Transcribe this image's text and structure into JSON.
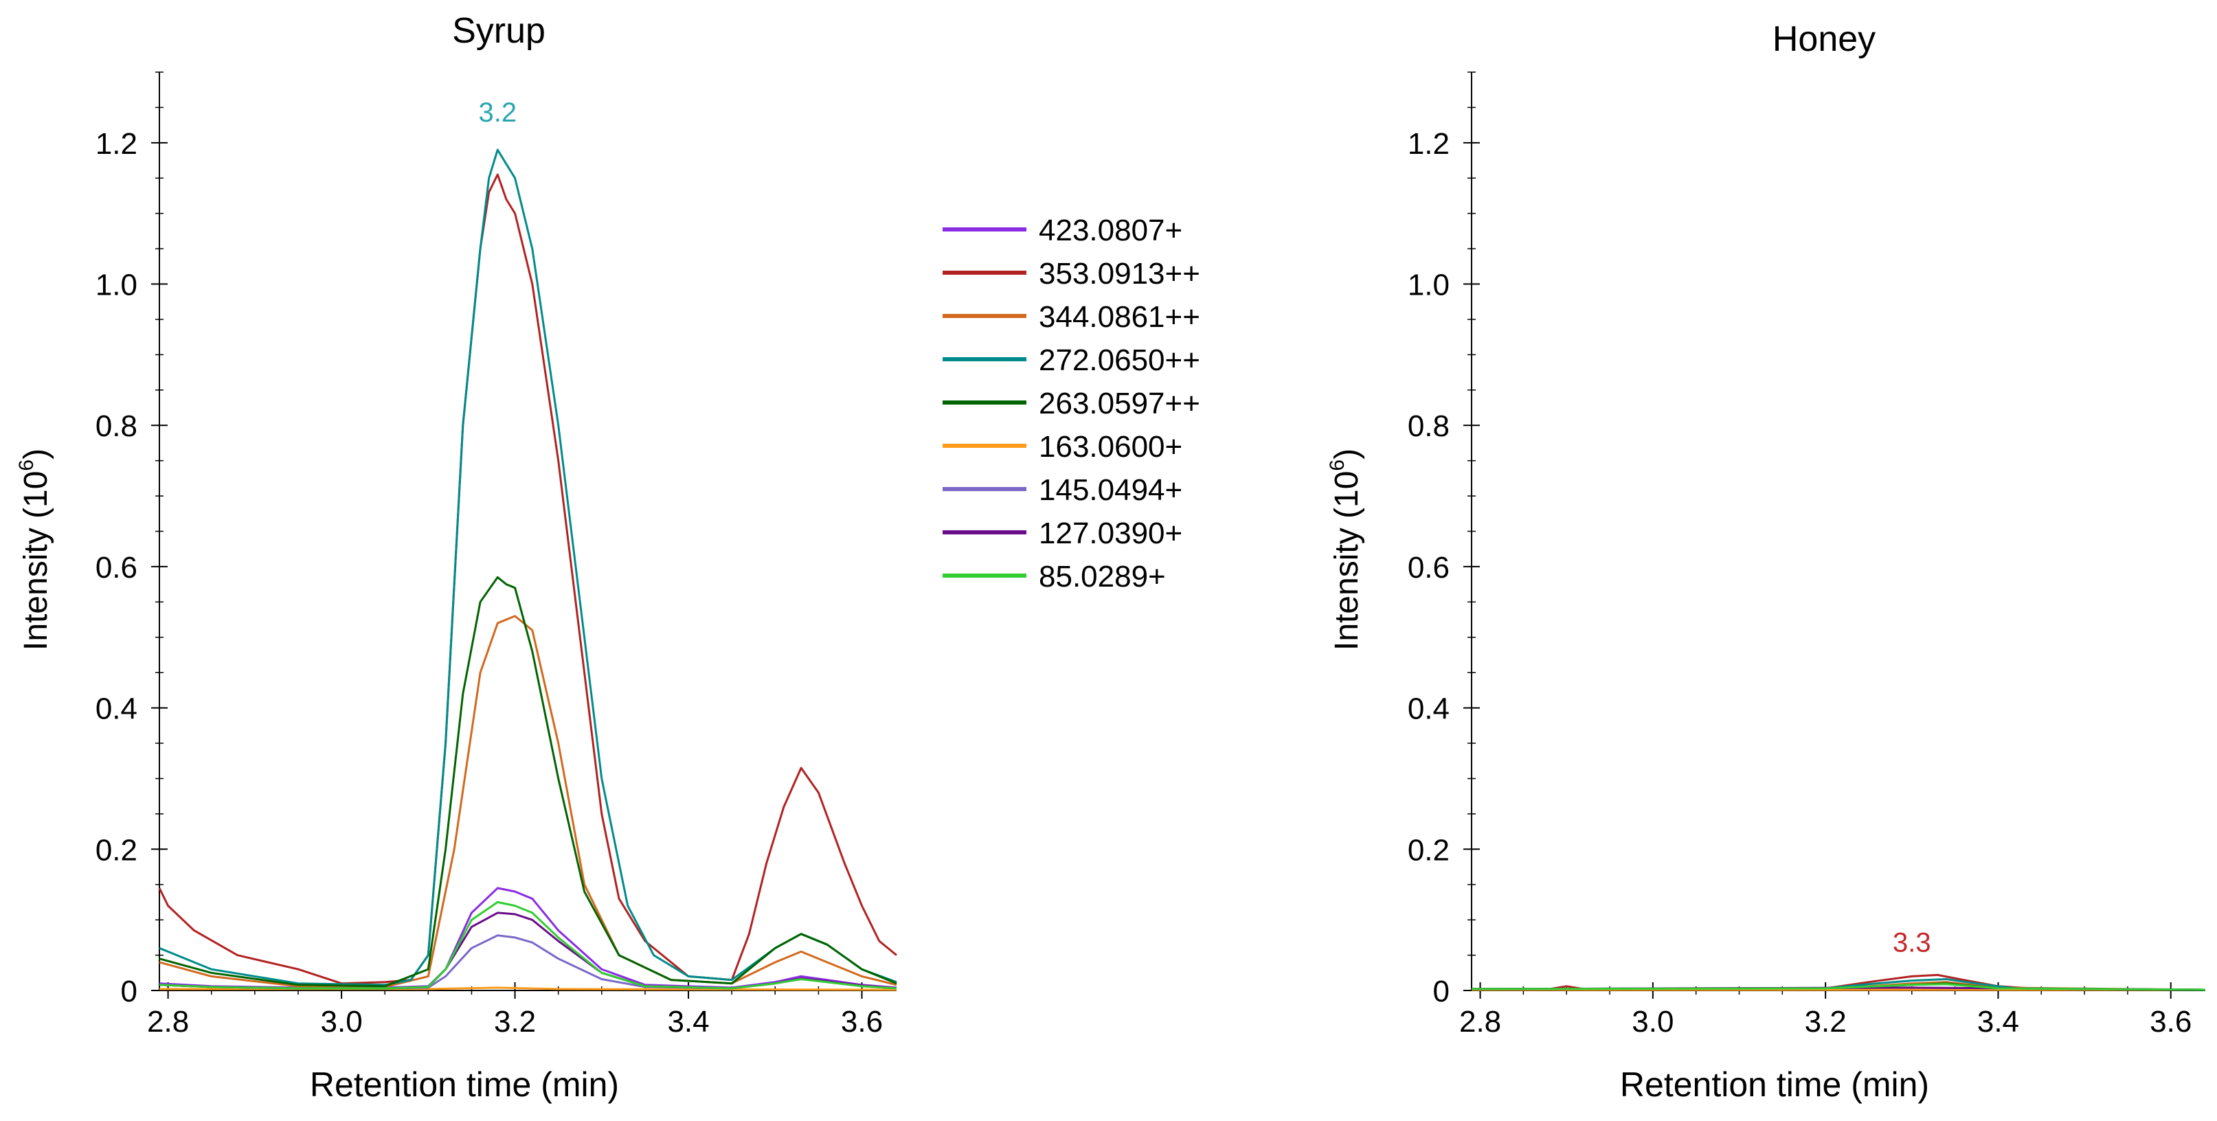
{
  "legend": {
    "entries": [
      {
        "label": "423.0807+",
        "color": "#8a2be2"
      },
      {
        "label": "353.0913++",
        "color": "#b22222"
      },
      {
        "label": "344.0861++",
        "color": "#d2691e"
      },
      {
        "label": "272.0650++",
        "color": "#008b8b"
      },
      {
        "label": "263.0597++",
        "color": "#006400"
      },
      {
        "label": "163.0600+",
        "color": "#ff9a1a"
      },
      {
        "label": "145.0494+",
        "color": "#7b68c8"
      },
      {
        "label": "127.0390+",
        "color": "#6a0d8a"
      },
      {
        "label": "85.0289+",
        "color": "#32cd32"
      }
    ]
  },
  "chart_data": [
    {
      "type": "line",
      "title": "Syrup",
      "xlabel": "Retention time (min)",
      "ylabel": "Intensity (10",
      "ylabel_exp": "6",
      "ylabel_close": ")",
      "xlim": [
        2.79,
        3.64
      ],
      "ylim": [
        0,
        1.3
      ],
      "xticks": [
        2.8,
        3.0,
        3.2,
        3.4,
        3.6
      ],
      "xtick_labels": [
        "2.8",
        "3.0",
        "3.2",
        "3.4",
        "3.6"
      ],
      "yticks": [
        0,
        0.2,
        0.4,
        0.6,
        0.8,
        1.0,
        1.2
      ],
      "ytick_labels": [
        "0",
        "0.2",
        "0.4",
        "0.6",
        "0.8",
        "1.0",
        "1.2"
      ],
      "annotations": [
        {
          "text": "3.2",
          "x": 3.18,
          "y": 1.23,
          "color": "#2aa6b0"
        }
      ],
      "series": [
        {
          "name": "423.0807+",
          "color": "#8a2be2",
          "x": [
            2.79,
            2.85,
            2.95,
            3.05,
            3.1,
            3.12,
            3.15,
            3.18,
            3.2,
            3.22,
            3.25,
            3.3,
            3.35,
            3.45,
            3.5,
            3.53,
            3.56,
            3.6,
            3.64
          ],
          "y": [
            0.01,
            0.006,
            0.004,
            0.004,
            0.006,
            0.03,
            0.11,
            0.145,
            0.14,
            0.13,
            0.085,
            0.03,
            0.008,
            0.004,
            0.012,
            0.02,
            0.015,
            0.008,
            0.004
          ]
        },
        {
          "name": "353.0913++",
          "color": "#b22222",
          "x": [
            2.79,
            2.8,
            2.83,
            2.88,
            2.95,
            3.0,
            3.05,
            3.08,
            3.1,
            3.12,
            3.14,
            3.16,
            3.17,
            3.18,
            3.19,
            3.2,
            3.22,
            3.25,
            3.28,
            3.3,
            3.32,
            3.35,
            3.4,
            3.45,
            3.47,
            3.49,
            3.51,
            3.53,
            3.55,
            3.58,
            3.6,
            3.62,
            3.64
          ],
          "y": [
            0.145,
            0.12,
            0.085,
            0.05,
            0.03,
            0.01,
            0.012,
            0.015,
            0.05,
            0.35,
            0.8,
            1.05,
            1.13,
            1.155,
            1.12,
            1.1,
            1.0,
            0.75,
            0.45,
            0.25,
            0.13,
            0.07,
            0.02,
            0.015,
            0.08,
            0.18,
            0.26,
            0.315,
            0.28,
            0.18,
            0.12,
            0.07,
            0.05
          ]
        },
        {
          "name": "344.0861++",
          "color": "#d2691e",
          "x": [
            2.79,
            2.85,
            2.95,
            3.05,
            3.1,
            3.13,
            3.16,
            3.18,
            3.2,
            3.22,
            3.25,
            3.28,
            3.32,
            3.38,
            3.45,
            3.5,
            3.53,
            3.56,
            3.6,
            3.64
          ],
          "y": [
            0.04,
            0.02,
            0.006,
            0.005,
            0.02,
            0.2,
            0.45,
            0.52,
            0.53,
            0.51,
            0.35,
            0.15,
            0.05,
            0.015,
            0.01,
            0.04,
            0.055,
            0.04,
            0.02,
            0.008
          ]
        },
        {
          "name": "272.0650++",
          "color": "#008b8b",
          "x": [
            2.79,
            2.85,
            2.95,
            3.05,
            3.08,
            3.1,
            3.12,
            3.14,
            3.16,
            3.17,
            3.18,
            3.19,
            3.2,
            3.22,
            3.25,
            3.28,
            3.3,
            3.33,
            3.36,
            3.4,
            3.45,
            3.5,
            3.53,
            3.56,
            3.6,
            3.64
          ],
          "y": [
            0.06,
            0.03,
            0.01,
            0.008,
            0.015,
            0.05,
            0.35,
            0.8,
            1.05,
            1.15,
            1.19,
            1.17,
            1.15,
            1.05,
            0.8,
            0.5,
            0.3,
            0.12,
            0.05,
            0.02,
            0.015,
            0.06,
            0.08,
            0.065,
            0.03,
            0.012
          ]
        },
        {
          "name": "263.0597++",
          "color": "#006400",
          "x": [
            2.79,
            2.85,
            2.95,
            3.05,
            3.1,
            3.12,
            3.14,
            3.16,
            3.18,
            3.19,
            3.2,
            3.22,
            3.25,
            3.28,
            3.32,
            3.38,
            3.45,
            3.5,
            3.53,
            3.56,
            3.6,
            3.64
          ],
          "y": [
            0.045,
            0.025,
            0.008,
            0.006,
            0.03,
            0.2,
            0.42,
            0.55,
            0.585,
            0.575,
            0.57,
            0.48,
            0.3,
            0.14,
            0.05,
            0.015,
            0.01,
            0.06,
            0.08,
            0.065,
            0.03,
            0.01
          ]
        },
        {
          "name": "163.0600+",
          "color": "#ff9a1a",
          "x": [
            2.79,
            3.1,
            3.18,
            3.25,
            3.64
          ],
          "y": [
            0.002,
            0.002,
            0.004,
            0.002,
            0.001
          ]
        },
        {
          "name": "145.0494+",
          "color": "#7b68c8",
          "x": [
            2.79,
            2.85,
            2.95,
            3.05,
            3.1,
            3.12,
            3.15,
            3.18,
            3.2,
            3.22,
            3.25,
            3.3,
            3.35,
            3.45,
            3.5,
            3.53,
            3.56,
            3.6,
            3.64
          ],
          "y": [
            0.008,
            0.005,
            0.003,
            0.003,
            0.004,
            0.02,
            0.06,
            0.078,
            0.075,
            0.068,
            0.045,
            0.016,
            0.005,
            0.003,
            0.01,
            0.016,
            0.012,
            0.006,
            0.003
          ]
        },
        {
          "name": "127.0390+",
          "color": "#6a0d8a",
          "x": [
            2.79,
            2.85,
            2.95,
            3.05,
            3.1,
            3.12,
            3.15,
            3.18,
            3.2,
            3.22,
            3.25,
            3.3,
            3.35,
            3.45,
            3.5,
            3.53,
            3.56,
            3.6,
            3.64
          ],
          "y": [
            0.008,
            0.005,
            0.003,
            0.003,
            0.005,
            0.03,
            0.09,
            0.11,
            0.108,
            0.1,
            0.07,
            0.025,
            0.006,
            0.003,
            0.01,
            0.017,
            0.013,
            0.007,
            0.003
          ]
        },
        {
          "name": "85.0289+",
          "color": "#32cd32",
          "x": [
            2.79,
            2.85,
            2.95,
            3.05,
            3.1,
            3.12,
            3.15,
            3.18,
            3.2,
            3.22,
            3.25,
            3.3,
            3.35,
            3.45,
            3.5,
            3.53,
            3.56,
            3.6,
            3.64
          ],
          "y": [
            0.008,
            0.005,
            0.003,
            0.003,
            0.005,
            0.03,
            0.1,
            0.125,
            0.12,
            0.11,
            0.075,
            0.025,
            0.006,
            0.003,
            0.01,
            0.016,
            0.012,
            0.006,
            0.003
          ]
        }
      ]
    },
    {
      "type": "line",
      "title": "Honey",
      "xlabel": "Retention time (min)",
      "ylabel": "Intensity (10",
      "ylabel_exp": "6",
      "ylabel_close": ")",
      "xlim": [
        2.79,
        3.64
      ],
      "ylim": [
        0,
        1.3
      ],
      "xticks": [
        2.8,
        3.0,
        3.2,
        3.4,
        3.6
      ],
      "xtick_labels": [
        "2.8",
        "3.0",
        "3.2",
        "3.4",
        "3.6"
      ],
      "yticks": [
        0,
        0.2,
        0.4,
        0.6,
        0.8,
        1.0,
        1.2
      ],
      "ytick_labels": [
        "0",
        "0.2",
        "0.4",
        "0.6",
        "0.8",
        "1.0",
        "1.2"
      ],
      "annotations": [
        {
          "text": "3.3",
          "x": 3.3,
          "y": 0.055,
          "color": "#c62828"
        }
      ],
      "series": [
        {
          "name": "423.0807+",
          "color": "#8a2be2",
          "x": [
            2.79,
            3.2,
            3.3,
            3.4,
            3.64
          ],
          "y": [
            0.002,
            0.002,
            0.004,
            0.002,
            0.001
          ]
        },
        {
          "name": "353.0913++",
          "color": "#b22222",
          "x": [
            2.79,
            2.88,
            2.9,
            2.92,
            3.2,
            3.25,
            3.3,
            3.33,
            3.36,
            3.4,
            3.45,
            3.64
          ],
          "y": [
            0.002,
            0.002,
            0.006,
            0.002,
            0.003,
            0.012,
            0.02,
            0.022,
            0.015,
            0.006,
            0.002,
            0.001
          ]
        },
        {
          "name": "344.0861++",
          "color": "#d2691e",
          "x": [
            2.79,
            3.2,
            3.3,
            3.34,
            3.4,
            3.64
          ],
          "y": [
            0.002,
            0.002,
            0.01,
            0.012,
            0.004,
            0.001
          ]
        },
        {
          "name": "272.0650++",
          "color": "#008b8b",
          "x": [
            2.79,
            3.2,
            3.25,
            3.3,
            3.34,
            3.38,
            3.42,
            3.64
          ],
          "y": [
            0.002,
            0.003,
            0.009,
            0.014,
            0.016,
            0.009,
            0.003,
            0.001
          ]
        },
        {
          "name": "263.0597++",
          "color": "#006400",
          "x": [
            2.79,
            3.2,
            3.3,
            3.34,
            3.4,
            3.64
          ],
          "y": [
            0.002,
            0.002,
            0.008,
            0.01,
            0.003,
            0.001
          ]
        },
        {
          "name": "163.0600+",
          "color": "#ff9a1a",
          "x": [
            2.79,
            3.64
          ],
          "y": [
            0.001,
            0.001
          ]
        },
        {
          "name": "145.0494+",
          "color": "#7b68c8",
          "x": [
            2.79,
            3.3,
            3.64
          ],
          "y": [
            0.002,
            0.004,
            0.001
          ]
        },
        {
          "name": "127.0390+",
          "color": "#6a0d8a",
          "x": [
            2.79,
            3.3,
            3.64
          ],
          "y": [
            0.002,
            0.004,
            0.001
          ]
        },
        {
          "name": "85.0289+",
          "color": "#32cd32",
          "x": [
            2.79,
            3.2,
            3.3,
            3.34,
            3.4,
            3.64
          ],
          "y": [
            0.002,
            0.003,
            0.008,
            0.009,
            0.003,
            0.001
          ]
        }
      ]
    }
  ]
}
